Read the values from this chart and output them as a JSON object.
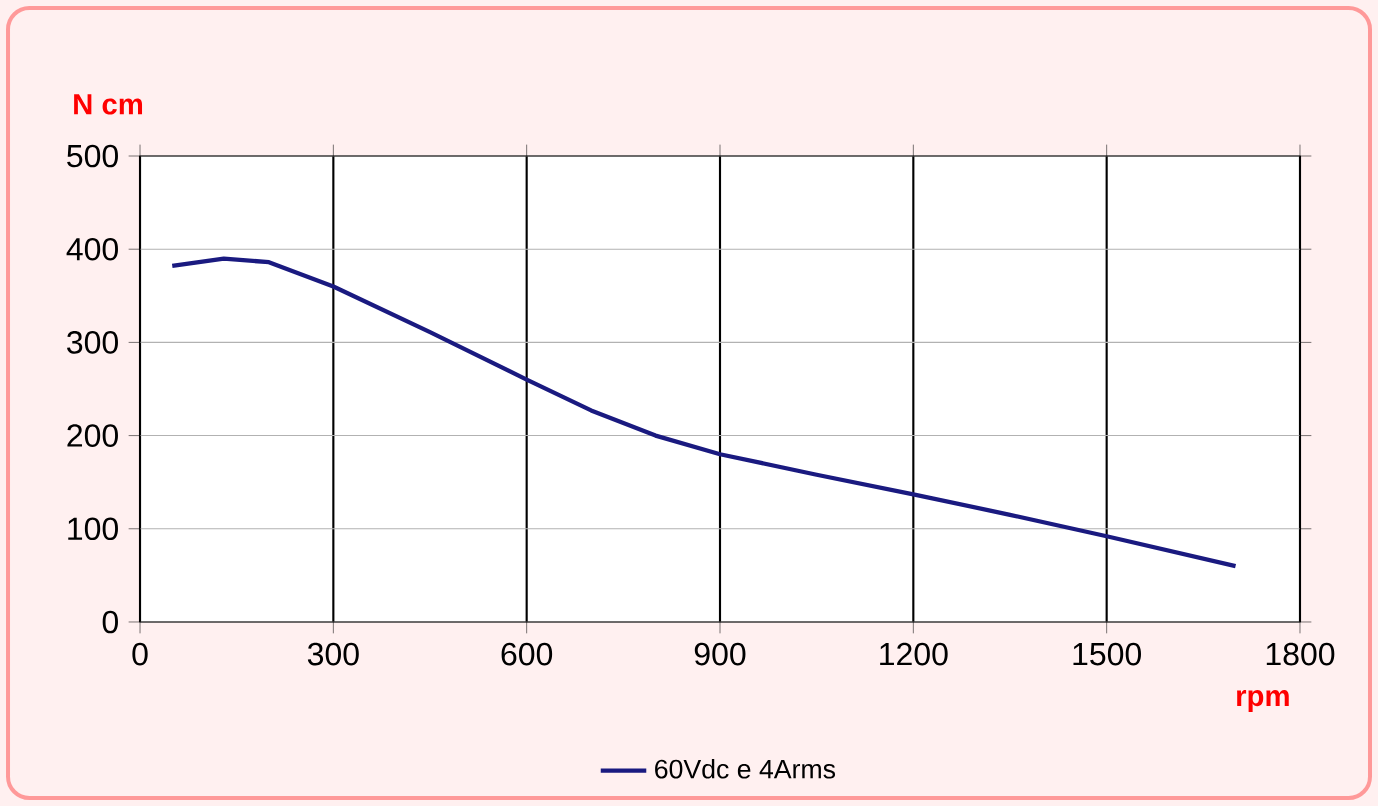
{
  "chart_data": {
    "type": "line",
    "xlabel": "rpm",
    "ylabel": "N cm",
    "xlim": [
      0,
      1800
    ],
    "xticks": [
      0,
      300,
      600,
      900,
      1200,
      1500,
      1800
    ],
    "ylim": [
      0,
      500
    ],
    "yticks": [
      0,
      100,
      200,
      300,
      400,
      500
    ],
    "grid": true,
    "legend": "bottom",
    "marker": "none",
    "line_style": "solid",
    "series": [
      {
        "name": "60Vdc e 4Arms",
        "color": "#1a1a80",
        "x": [
          50,
          130,
          200,
          300,
          450,
          600,
          700,
          800,
          900,
          1050,
          1200,
          1350,
          1500,
          1700
        ],
        "values": [
          382,
          390,
          386,
          360,
          311,
          260,
          227,
          200,
          180,
          158,
          137,
          115,
          92,
          60
        ]
      }
    ]
  }
}
